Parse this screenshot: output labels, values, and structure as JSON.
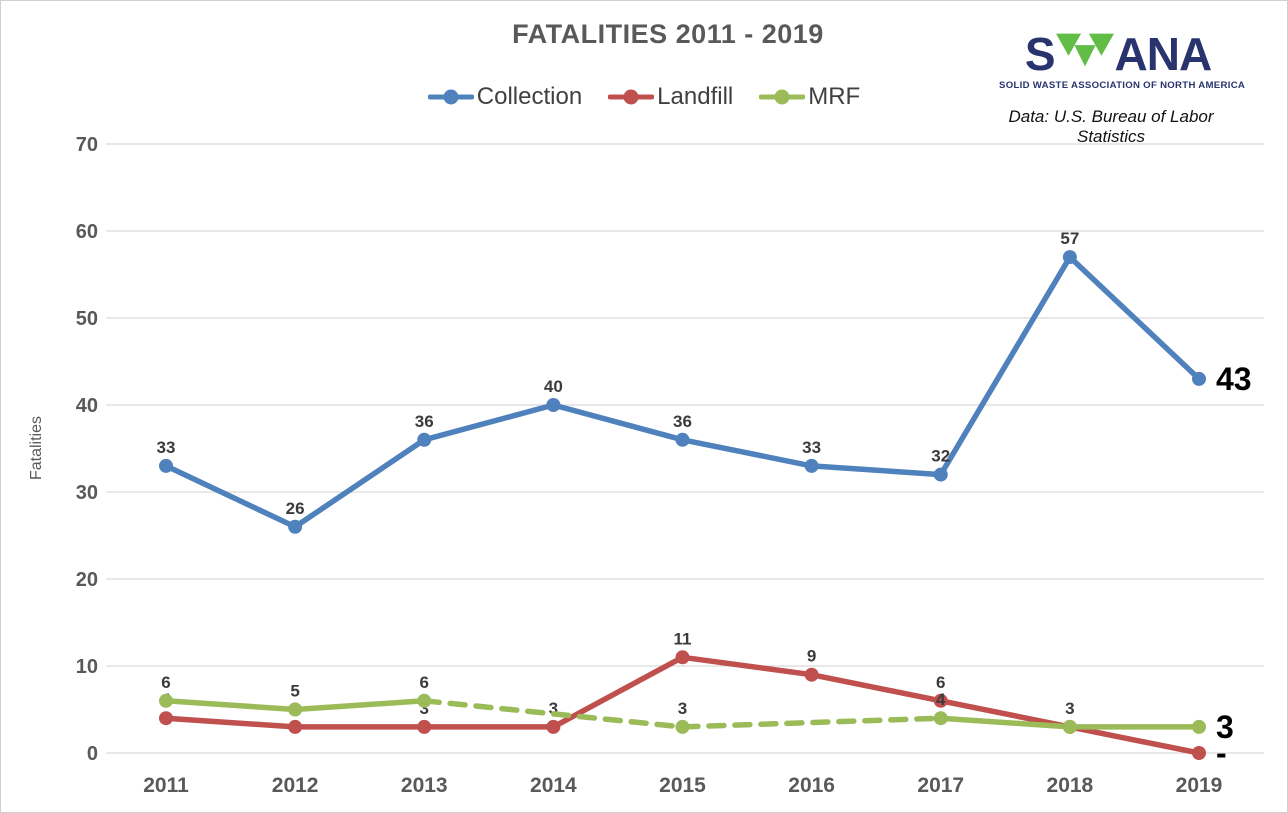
{
  "header": {
    "logo": {
      "brand_s": "S",
      "brand_rest": "ANA",
      "w_icon": "swana-w-triangles-icon",
      "tagline": "SOLID WASTE ASSOCIATION OF NORTH AMERICA",
      "navy": "#29336E",
      "green": "#62BD47"
    },
    "credit": "Data: U.S. Bureau of Labor Statistics"
  },
  "chart_data": {
    "type": "line",
    "title": "FATALITIES 2011 - 2019",
    "xlabel": "",
    "ylabel": "Fatalities",
    "ylim": [
      0,
      70
    ],
    "yticks": [
      0,
      10,
      20,
      30,
      40,
      50,
      60,
      70
    ],
    "grid": "horizontal",
    "legend_position": "top-center",
    "categories": [
      "2011",
      "2012",
      "2013",
      "2014",
      "2015",
      "2016",
      "2017",
      "2018",
      "2019"
    ],
    "series": [
      {
        "name": "Collection",
        "color": "#4F81BD",
        "line_style": "solid",
        "values": [
          33,
          26,
          36,
          40,
          36,
          33,
          32,
          57,
          43
        ],
        "labels": [
          "33",
          "26",
          "36",
          "40",
          "36",
          "33",
          "32",
          "57",
          "43"
        ]
      },
      {
        "name": "Landfill",
        "color": "#C0504D",
        "line_style": "solid",
        "values": [
          4,
          3,
          3,
          3,
          11,
          9,
          6,
          3,
          0
        ],
        "labels": [
          "4",
          "3",
          "3",
          "3",
          "11",
          "9",
          "6",
          null,
          "-"
        ]
      },
      {
        "name": "MRF",
        "color": "#9BBB59",
        "line_style": "solid-with-dashed-gap",
        "values": [
          6,
          5,
          6,
          null,
          3,
          null,
          4,
          3,
          3
        ],
        "labels": [
          "6",
          "5",
          "6",
          null,
          "3",
          null,
          "4",
          "3",
          "3"
        ],
        "segments": [
          {
            "from": 0,
            "to": 2,
            "dash": false
          },
          {
            "from": 2,
            "to": 6,
            "dash": true
          },
          {
            "from": 6,
            "to": 8,
            "dash": false
          }
        ]
      }
    ],
    "colors": {
      "gridline": "#D9D9D9",
      "axis_text": "#595959",
      "data_label": "#3B3B3B",
      "final_label": "#000000"
    }
  }
}
